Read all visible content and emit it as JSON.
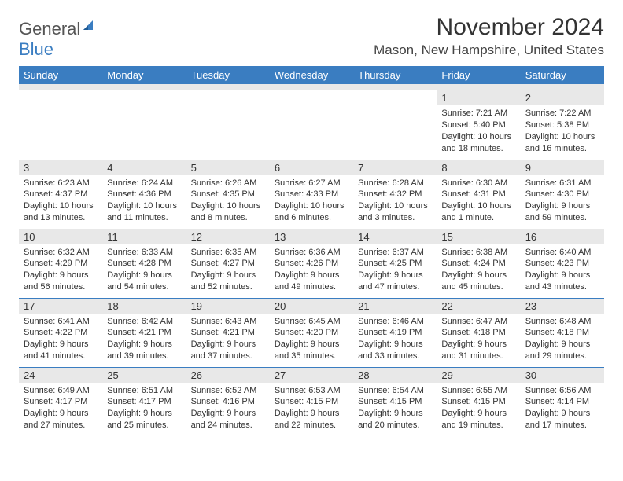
{
  "logo": {
    "text1": "General",
    "text2": "Blue"
  },
  "title": "November 2024",
  "location": "Mason, New Hampshire, United States",
  "colors": {
    "header_bg": "#3a7dc1",
    "header_fg": "#ffffff",
    "daynum_bg": "#e8e8e8",
    "row_border": "#3a7dc1",
    "text": "#333333",
    "logo_gray": "#555555",
    "logo_blue": "#3a7dc1"
  },
  "weekdays": [
    "Sunday",
    "Monday",
    "Tuesday",
    "Wednesday",
    "Thursday",
    "Friday",
    "Saturday"
  ],
  "weeks": [
    [
      null,
      null,
      null,
      null,
      null,
      {
        "n": "1",
        "sr": "Sunrise: 7:21 AM",
        "ss": "Sunset: 5:40 PM",
        "dl": "Daylight: 10 hours and 18 minutes."
      },
      {
        "n": "2",
        "sr": "Sunrise: 7:22 AM",
        "ss": "Sunset: 5:38 PM",
        "dl": "Daylight: 10 hours and 16 minutes."
      }
    ],
    [
      {
        "n": "3",
        "sr": "Sunrise: 6:23 AM",
        "ss": "Sunset: 4:37 PM",
        "dl": "Daylight: 10 hours and 13 minutes."
      },
      {
        "n": "4",
        "sr": "Sunrise: 6:24 AM",
        "ss": "Sunset: 4:36 PM",
        "dl": "Daylight: 10 hours and 11 minutes."
      },
      {
        "n": "5",
        "sr": "Sunrise: 6:26 AM",
        "ss": "Sunset: 4:35 PM",
        "dl": "Daylight: 10 hours and 8 minutes."
      },
      {
        "n": "6",
        "sr": "Sunrise: 6:27 AM",
        "ss": "Sunset: 4:33 PM",
        "dl": "Daylight: 10 hours and 6 minutes."
      },
      {
        "n": "7",
        "sr": "Sunrise: 6:28 AM",
        "ss": "Sunset: 4:32 PM",
        "dl": "Daylight: 10 hours and 3 minutes."
      },
      {
        "n": "8",
        "sr": "Sunrise: 6:30 AM",
        "ss": "Sunset: 4:31 PM",
        "dl": "Daylight: 10 hours and 1 minute."
      },
      {
        "n": "9",
        "sr": "Sunrise: 6:31 AM",
        "ss": "Sunset: 4:30 PM",
        "dl": "Daylight: 9 hours and 59 minutes."
      }
    ],
    [
      {
        "n": "10",
        "sr": "Sunrise: 6:32 AM",
        "ss": "Sunset: 4:29 PM",
        "dl": "Daylight: 9 hours and 56 minutes."
      },
      {
        "n": "11",
        "sr": "Sunrise: 6:33 AM",
        "ss": "Sunset: 4:28 PM",
        "dl": "Daylight: 9 hours and 54 minutes."
      },
      {
        "n": "12",
        "sr": "Sunrise: 6:35 AM",
        "ss": "Sunset: 4:27 PM",
        "dl": "Daylight: 9 hours and 52 minutes."
      },
      {
        "n": "13",
        "sr": "Sunrise: 6:36 AM",
        "ss": "Sunset: 4:26 PM",
        "dl": "Daylight: 9 hours and 49 minutes."
      },
      {
        "n": "14",
        "sr": "Sunrise: 6:37 AM",
        "ss": "Sunset: 4:25 PM",
        "dl": "Daylight: 9 hours and 47 minutes."
      },
      {
        "n": "15",
        "sr": "Sunrise: 6:38 AM",
        "ss": "Sunset: 4:24 PM",
        "dl": "Daylight: 9 hours and 45 minutes."
      },
      {
        "n": "16",
        "sr": "Sunrise: 6:40 AM",
        "ss": "Sunset: 4:23 PM",
        "dl": "Daylight: 9 hours and 43 minutes."
      }
    ],
    [
      {
        "n": "17",
        "sr": "Sunrise: 6:41 AM",
        "ss": "Sunset: 4:22 PM",
        "dl": "Daylight: 9 hours and 41 minutes."
      },
      {
        "n": "18",
        "sr": "Sunrise: 6:42 AM",
        "ss": "Sunset: 4:21 PM",
        "dl": "Daylight: 9 hours and 39 minutes."
      },
      {
        "n": "19",
        "sr": "Sunrise: 6:43 AM",
        "ss": "Sunset: 4:21 PM",
        "dl": "Daylight: 9 hours and 37 minutes."
      },
      {
        "n": "20",
        "sr": "Sunrise: 6:45 AM",
        "ss": "Sunset: 4:20 PM",
        "dl": "Daylight: 9 hours and 35 minutes."
      },
      {
        "n": "21",
        "sr": "Sunrise: 6:46 AM",
        "ss": "Sunset: 4:19 PM",
        "dl": "Daylight: 9 hours and 33 minutes."
      },
      {
        "n": "22",
        "sr": "Sunrise: 6:47 AM",
        "ss": "Sunset: 4:18 PM",
        "dl": "Daylight: 9 hours and 31 minutes."
      },
      {
        "n": "23",
        "sr": "Sunrise: 6:48 AM",
        "ss": "Sunset: 4:18 PM",
        "dl": "Daylight: 9 hours and 29 minutes."
      }
    ],
    [
      {
        "n": "24",
        "sr": "Sunrise: 6:49 AM",
        "ss": "Sunset: 4:17 PM",
        "dl": "Daylight: 9 hours and 27 minutes."
      },
      {
        "n": "25",
        "sr": "Sunrise: 6:51 AM",
        "ss": "Sunset: 4:17 PM",
        "dl": "Daylight: 9 hours and 25 minutes."
      },
      {
        "n": "26",
        "sr": "Sunrise: 6:52 AM",
        "ss": "Sunset: 4:16 PM",
        "dl": "Daylight: 9 hours and 24 minutes."
      },
      {
        "n": "27",
        "sr": "Sunrise: 6:53 AM",
        "ss": "Sunset: 4:15 PM",
        "dl": "Daylight: 9 hours and 22 minutes."
      },
      {
        "n": "28",
        "sr": "Sunrise: 6:54 AM",
        "ss": "Sunset: 4:15 PM",
        "dl": "Daylight: 9 hours and 20 minutes."
      },
      {
        "n": "29",
        "sr": "Sunrise: 6:55 AM",
        "ss": "Sunset: 4:15 PM",
        "dl": "Daylight: 9 hours and 19 minutes."
      },
      {
        "n": "30",
        "sr": "Sunrise: 6:56 AM",
        "ss": "Sunset: 4:14 PM",
        "dl": "Daylight: 9 hours and 17 minutes."
      }
    ]
  ]
}
